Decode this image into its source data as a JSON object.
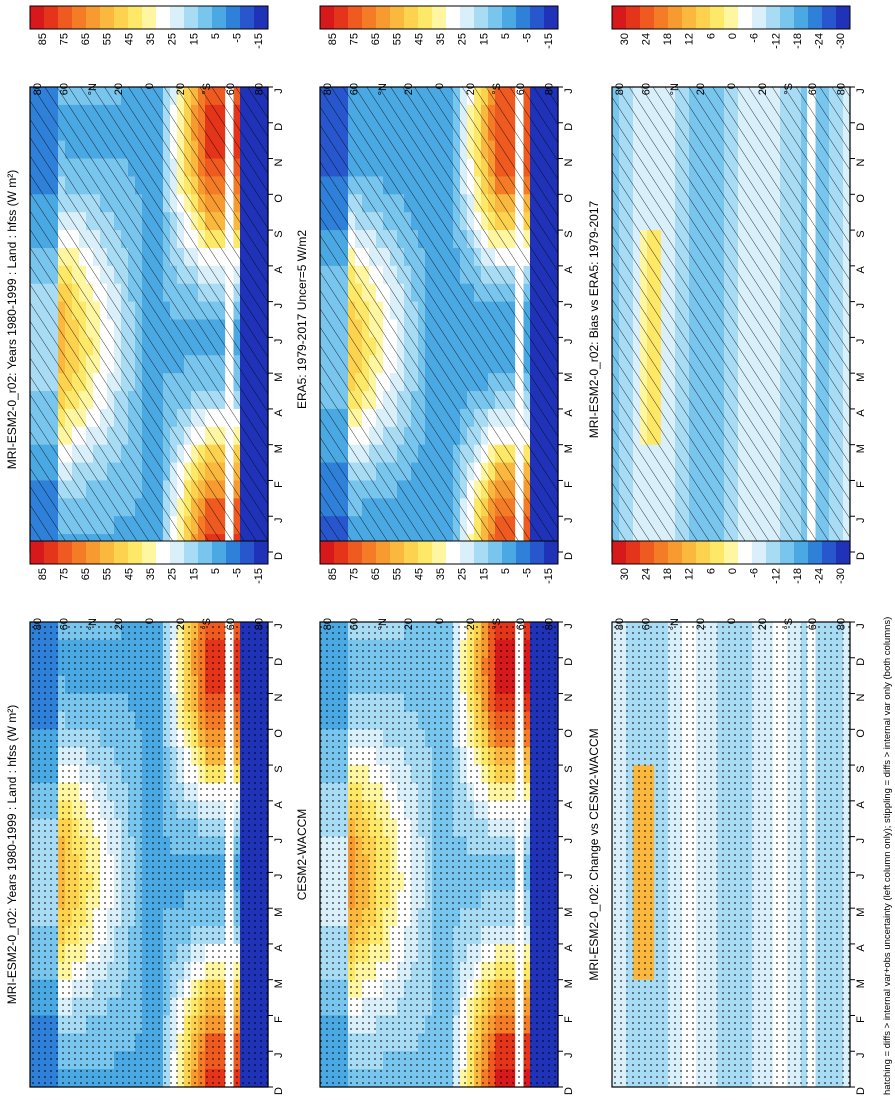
{
  "figure": {
    "footer": "hatching = diffs > internal var+obs uncertainty (left column only); stippling = diffs > internal var only (both columns)",
    "palettes": {
      "field": [
        "#d7191c",
        "#e4341a",
        "#ee5a1f",
        "#f47c26",
        "#f79a30",
        "#fab83e",
        "#fcd24f",
        "#fde868",
        "#fef6a0",
        "#ffffff",
        "#d9f0fb",
        "#a8dcf5",
        "#78c5ee",
        "#4aa8e3",
        "#2f80d8",
        "#2857cd",
        "#2033b8"
      ],
      "diff": [
        "#d7191c",
        "#e4341a",
        "#ee5a1f",
        "#f47c26",
        "#f79a30",
        "#fab83e",
        "#fcd24f",
        "#fde868",
        "#fef6a0",
        "#ffffff",
        "#d9f0fb",
        "#a8dcf5",
        "#78c5ee",
        "#4aa8e3",
        "#2f80d8",
        "#2857cd",
        "#2033b8"
      ]
    }
  },
  "chart_data": [
    {
      "type": "heatmap",
      "title": "MRI-ESM2-0_r02: Years 1980-1999 : Land : hfss (W m²)",
      "x": [
        "D",
        "J",
        "F",
        "M",
        "A",
        "M",
        "J",
        "J",
        "A",
        "S",
        "O",
        "N",
        "D",
        "J"
      ],
      "ylabel": "°S      °N",
      "yticks": [
        "80",
        "60",
        "20",
        "0",
        "20",
        "60",
        "80"
      ],
      "yticks_s": [
        "20",
        "60",
        "80"
      ],
      "colorbar": [
        "85",
        "75",
        "65",
        "55",
        "45",
        "35",
        "25",
        "15",
        "5",
        "-5",
        "-15"
      ],
      "palette": "field",
      "field": "model",
      "overlay": "hatch",
      "grid": "off"
    },
    {
      "type": "heatmap",
      "title": "MRI-ESM2-0_r02: Years 1980-1999 : Land : hfss (W m²)",
      "x": [
        "D",
        "J",
        "F",
        "M",
        "A",
        "M",
        "J",
        "J",
        "A",
        "S",
        "O",
        "N",
        "D",
        "J"
      ],
      "ylabel": "°S      °N",
      "yticks": [
        "80",
        "60",
        "20",
        "0",
        "20",
        "60",
        "80"
      ],
      "colorbar": [
        "85",
        "75",
        "65",
        "55",
        "45",
        "35",
        "25",
        "15",
        "5",
        "-5",
        "-15"
      ],
      "palette": "field",
      "field": "model",
      "overlay": "stipple",
      "grid": "off"
    },
    {
      "type": "heatmap",
      "title": "ERA5: 1979-2017 Uncer=5 W/m2",
      "x": [
        "D",
        "J",
        "F",
        "M",
        "A",
        "M",
        "J",
        "J",
        "A",
        "S",
        "O",
        "N",
        "D",
        "J"
      ],
      "ylabel": "°S      °N",
      "yticks": [
        "80",
        "60",
        "20",
        "0",
        "20",
        "60",
        "80"
      ],
      "colorbar": [
        "85",
        "75",
        "65",
        "55",
        "45",
        "35",
        "25",
        "15",
        "5",
        "-5",
        "-15"
      ],
      "palette": "field",
      "field": "obs",
      "overlay": "hatch",
      "grid": "off"
    },
    {
      "type": "heatmap",
      "title": "CESM2-WACCM",
      "x": [
        "D",
        "J",
        "F",
        "M",
        "A",
        "M",
        "J",
        "J",
        "A",
        "S",
        "O",
        "N",
        "D",
        "J"
      ],
      "ylabel": "°S      °N",
      "yticks": [
        "80",
        "60",
        "20",
        "0",
        "20",
        "60",
        "80"
      ],
      "colorbar": [
        "85",
        "75",
        "65",
        "55",
        "45",
        "35",
        "25",
        "15",
        "5",
        "-5",
        "-15"
      ],
      "palette": "field",
      "field": "cesm",
      "overlay": "stipple",
      "grid": "off"
    },
    {
      "type": "heatmap",
      "title": "MRI-ESM2-0_r02: Bias vs ERA5: 1979-2017",
      "x": [
        "D",
        "J",
        "F",
        "M",
        "A",
        "M",
        "J",
        "J",
        "A",
        "S",
        "O",
        "N",
        "D",
        "J"
      ],
      "ylabel": "°S      °N",
      "yticks": [
        "80",
        "60",
        "20",
        "0",
        "20",
        "60",
        "80"
      ],
      "colorbar": [
        "30",
        "24",
        "18",
        "12",
        "6",
        "0",
        "-6",
        "-12",
        "-18",
        "-24",
        "-30"
      ],
      "palette": "diff",
      "field": "bias",
      "overlay": "hatch",
      "grid": "off"
    },
    {
      "type": "heatmap",
      "title": "MRI-ESM2-0_r02: Change vs CESM2-WACCM",
      "x": [
        "D",
        "J",
        "F",
        "M",
        "A",
        "M",
        "J",
        "J",
        "A",
        "S",
        "O",
        "N",
        "D",
        "J"
      ],
      "ylabel": "°S      °N",
      "yticks": [
        "80",
        "60",
        "20",
        "0",
        "20",
        "60",
        "80"
      ],
      "colorbar": [
        "30",
        "24",
        "18",
        "12",
        "6",
        "0",
        "-6",
        "-12",
        "-18",
        "-24",
        "-30"
      ],
      "palette": "diff",
      "field": "change",
      "overlay": "stipple",
      "grid": "off"
    }
  ]
}
